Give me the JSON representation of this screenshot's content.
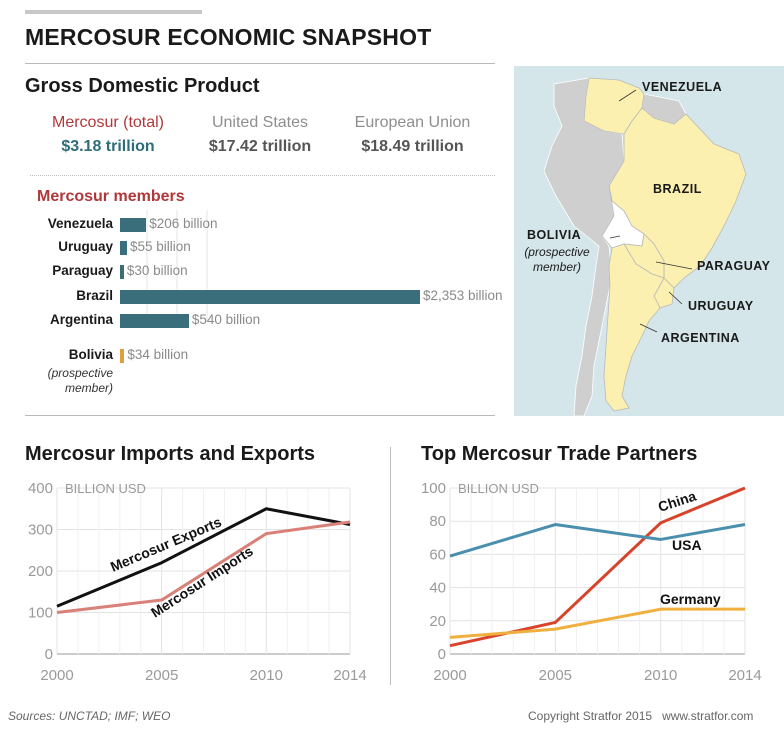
{
  "title": "MERCOSUR ECONOMIC SNAPSHOT",
  "gdp": {
    "heading": "Gross Domestic Product",
    "items": [
      {
        "label": "Mercosur (total)",
        "value": "$3.18 trillion"
      },
      {
        "label": "United States",
        "value": "$17.42 trillion"
      },
      {
        "label": "European Union",
        "value": "$18.49 trillion"
      }
    ],
    "colors": {
      "mercosur_label": "#b0383a",
      "mercosur_value": "#2e6e78",
      "other": "#8e8e8e"
    }
  },
  "map": {
    "labels": {
      "venezuela": "VENEZUELA",
      "brazil": "BRAZIL",
      "bolivia": "BOLIVIA",
      "bolivia_sub1": "(prospective",
      "bolivia_sub2": "member)",
      "paraguay": "PARAGUAY",
      "uruguay": "URUGUAY",
      "argentina": "ARGENTINA"
    },
    "colors": {
      "sea": "#d4e6ea",
      "member": "#fbf0b0",
      "nonmember": "#cfcfcf",
      "prospective": "#ffffff"
    }
  },
  "chart_data": [
    {
      "type": "bar",
      "title": "Mercosur members",
      "orientation": "horizontal",
      "categories": [
        "Venezuela",
        "Uruguay",
        "Paraguay",
        "Brazil",
        "Argentina",
        "Bolivia"
      ],
      "category_subtitles": {
        "Bolivia": [
          "(prospective",
          "member)"
        ]
      },
      "values": [
        206,
        55,
        30,
        2353,
        540,
        34
      ],
      "value_labels": [
        "$206 billion",
        "$55 billion",
        "$30 billion",
        "$2,353 billion",
        "$540 billion",
        "$34 billion"
      ],
      "unit": "billion",
      "colors": {
        "member": "#3a6e7a",
        "prospective": "#e0a13c"
      }
    },
    {
      "type": "line",
      "title": "Mercosur Imports and Exports",
      "ylabel": "BILLION USD",
      "x": [
        2000,
        2005,
        2010,
        2014
      ],
      "x_ticks": [
        "2000",
        "2005",
        "2010",
        "2014"
      ],
      "y_ticks": [
        "0",
        "100",
        "200",
        "300",
        "400"
      ],
      "ylim": [
        0,
        400
      ],
      "grid": true,
      "series": [
        {
          "name": "Mercosur Exports",
          "values": [
            115,
            220,
            350,
            312
          ],
          "color": "#111111"
        },
        {
          "name": "Mercosur Imports",
          "values": [
            100,
            130,
            290,
            318
          ],
          "color": "#d98079"
        }
      ]
    },
    {
      "type": "line",
      "title": "Top Mercosur Trade Partners",
      "ylabel": "BILLION USD",
      "x": [
        2000,
        2005,
        2010,
        2014
      ],
      "x_ticks": [
        "2000",
        "2005",
        "2010",
        "2014"
      ],
      "y_ticks": [
        "0",
        "20",
        "40",
        "60",
        "80",
        "100"
      ],
      "ylim": [
        0,
        100
      ],
      "grid": true,
      "series": [
        {
          "name": "China",
          "values": [
            5,
            19,
            79,
            100
          ],
          "color": "#d8432c"
        },
        {
          "name": "USA",
          "values": [
            59,
            78,
            69,
            78
          ],
          "color": "#4a8fae"
        },
        {
          "name": "Germany",
          "values": [
            10,
            15,
            27,
            27
          ],
          "color": "#f0b040"
        }
      ]
    }
  ],
  "footer": {
    "sources": "Sources: UNCTAD; IMF; WEO",
    "copyright": "Copyright Stratfor 2015   www.stratfor.com"
  }
}
